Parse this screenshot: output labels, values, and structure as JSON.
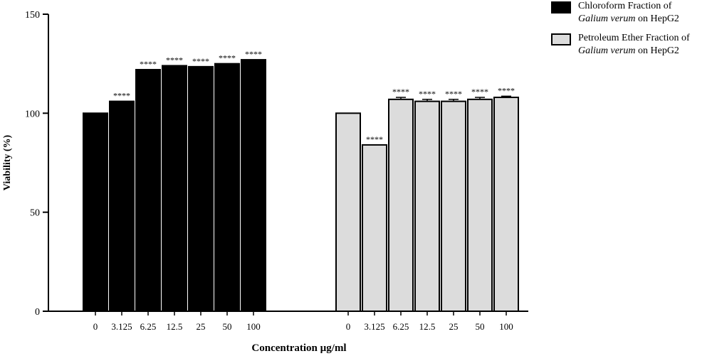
{
  "chart_data": {
    "type": "bar",
    "xlabel": "Concentration µg/ml",
    "ylabel": "Viability (%)",
    "ylim": [
      0,
      150
    ],
    "yticks": [
      0,
      50,
      100,
      150
    ],
    "grid": false,
    "legend_position": "top-right",
    "groups": [
      {
        "name": "Chloroform Fraction of Galium verum on HepG2",
        "legend_prefix": "Chloroform Fraction of",
        "legend_species": "Galium verum",
        "legend_suffix": " on HepG2",
        "color": "#000000",
        "categories": [
          "0",
          "3.125",
          "6.25",
          "12.5",
          "25",
          "50",
          "100"
        ],
        "values": [
          100,
          106,
          122,
          124,
          123.5,
          125,
          127
        ],
        "error": [
          0,
          0,
          0,
          0,
          0,
          0,
          0
        ],
        "significance": [
          "",
          "****",
          "****",
          "****",
          "****",
          "****",
          "****"
        ]
      },
      {
        "name": "Petroleum Ether Fraction of Galium verum on HepG2",
        "legend_prefix": "Petroleum Ether Fraction of",
        "legend_species": "Galium verum",
        "legend_suffix": " on HepG2",
        "color": "#dcdcdc",
        "categories": [
          "0",
          "3.125",
          "6.25",
          "12.5",
          "25",
          "50",
          "100"
        ],
        "values": [
          100,
          84,
          107,
          106,
          106,
          107,
          108
        ],
        "error": [
          0,
          0,
          1,
          1,
          1,
          1,
          0.6
        ],
        "significance": [
          "",
          "****",
          "****",
          "****",
          "****",
          "****",
          "****"
        ]
      }
    ]
  }
}
